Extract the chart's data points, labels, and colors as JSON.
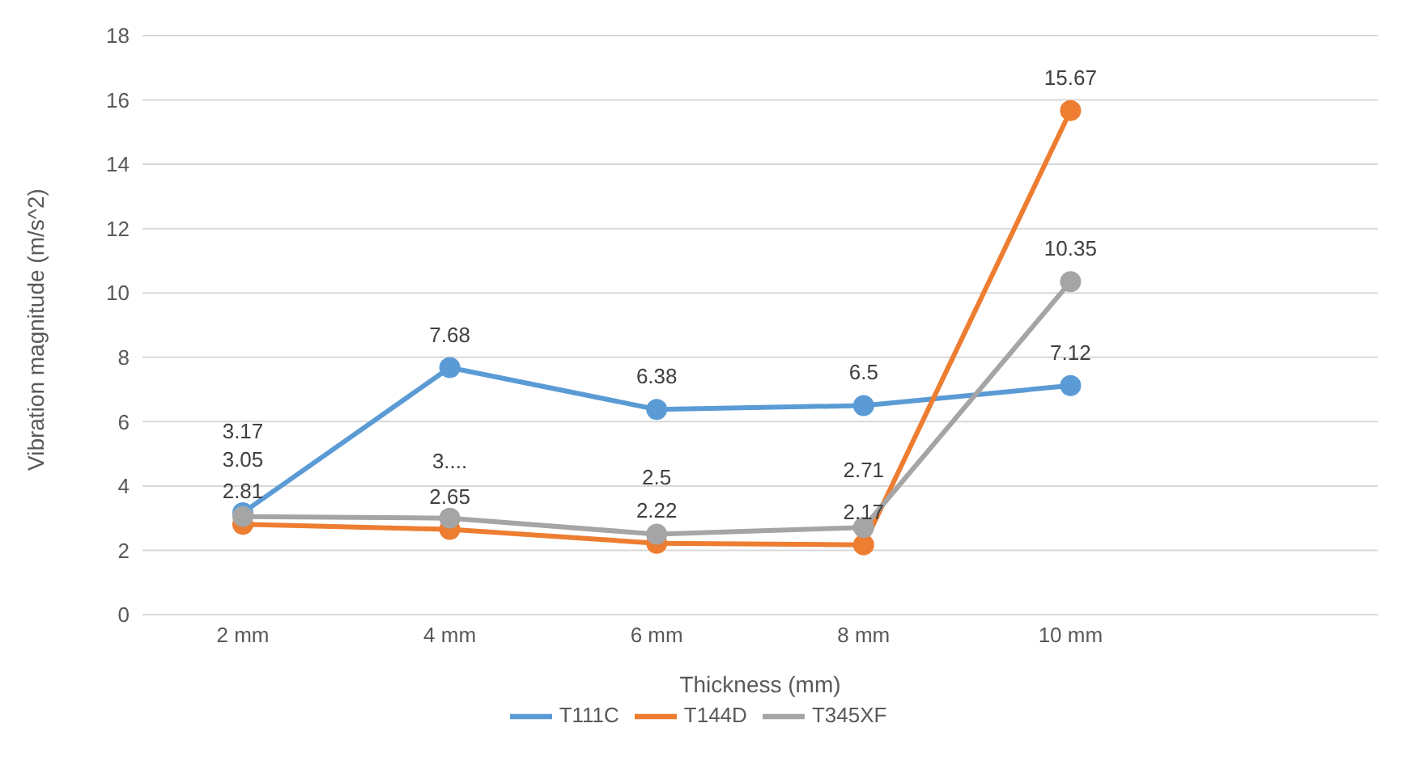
{
  "chart_data": {
    "type": "line",
    "xlabel": "Thickness (mm)",
    "ylabel": "Vibration magnitude (m/s^2)",
    "categories": [
      "2 mm",
      "4 mm",
      "6 mm",
      "8 mm",
      "10 mm",
      null
    ],
    "series": [
      {
        "name": "T111C",
        "color": "#5b9bd5",
        "values": [
          3.17,
          7.68,
          6.38,
          6.5,
          7.12,
          null
        ]
      },
      {
        "name": "T144D",
        "color": "#ed7d31",
        "values": [
          2.81,
          2.65,
          2.22,
          2.17,
          15.67,
          null
        ]
      },
      {
        "name": "T345XF",
        "color": "#a5a5a5",
        "values": [
          3.05,
          3.0,
          2.5,
          2.71,
          10.35,
          null
        ],
        "value_labels": [
          "3.05",
          "3....",
          "2.5",
          "2.71",
          "10.35",
          null
        ]
      }
    ],
    "ylim": [
      0,
      18
    ],
    "yticks": [
      0,
      2,
      4,
      6,
      8,
      10,
      12,
      14,
      16,
      18
    ],
    "grid": "y",
    "legend": "bottom",
    "marker": "circle",
    "line_style": "solid",
    "data_labels": true
  }
}
